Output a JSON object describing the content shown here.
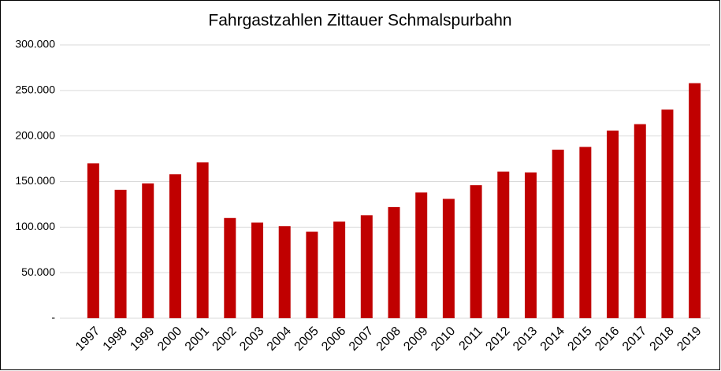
{
  "chart_data": {
    "type": "bar",
    "title": "Fahrgastzahlen Zittauer Schmalspurbahn",
    "categories": [
      "1997",
      "1998",
      "1999",
      "2000",
      "2001",
      "2002",
      "2003",
      "2004",
      "2005",
      "2006",
      "2007",
      "2008",
      "2009",
      "2010",
      "2011",
      "2012",
      "2013",
      "2014",
      "2015",
      "2016",
      "2017",
      "2018",
      "2019"
    ],
    "values": [
      170000,
      141000,
      148000,
      158000,
      171000,
      110000,
      105000,
      101000,
      95000,
      106000,
      113000,
      122000,
      138000,
      131000,
      146000,
      161000,
      160000,
      185000,
      188000,
      206000,
      213000,
      229000,
      258000
    ],
    "color": "#c00000",
    "ylim": [
      0,
      300000
    ],
    "yticks": [
      {
        "value": 0,
        "label": "-"
      },
      {
        "value": 50000,
        "label": "50.000"
      },
      {
        "value": 100000,
        "label": "100.000"
      },
      {
        "value": 150000,
        "label": "150.000"
      },
      {
        "value": 200000,
        "label": "200.000"
      },
      {
        "value": 250000,
        "label": "250.000"
      },
      {
        "value": 300000,
        "label": "300.000"
      }
    ],
    "grid": true
  }
}
